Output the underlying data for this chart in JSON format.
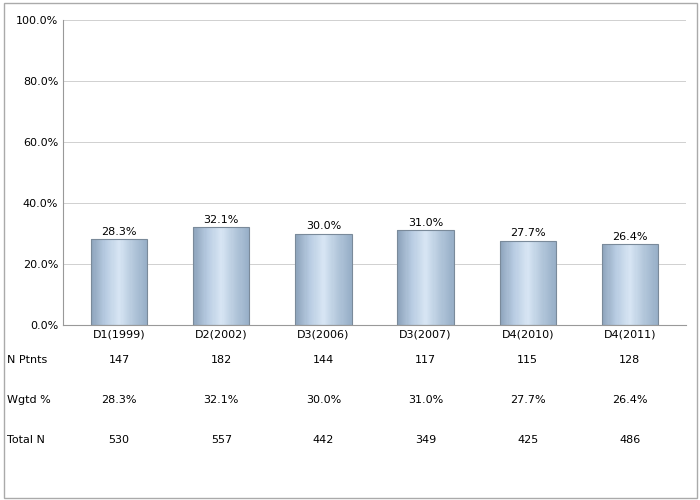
{
  "categories": [
    "D1(1999)",
    "D2(2002)",
    "D3(2006)",
    "D3(2007)",
    "D4(2010)",
    "D4(2011)"
  ],
  "values": [
    28.3,
    32.1,
    30.0,
    31.0,
    27.7,
    26.4
  ],
  "labels": [
    "28.3%",
    "32.1%",
    "30.0%",
    "31.0%",
    "27.7%",
    "26.4%"
  ],
  "n_ptnts": [
    147,
    182,
    144,
    117,
    115,
    128
  ],
  "wgtd_pct": [
    "28.3%",
    "32.1%",
    "30.0%",
    "31.0%",
    "27.7%",
    "26.4%"
  ],
  "total_n": [
    530,
    557,
    442,
    349,
    425,
    486
  ],
  "ylim": [
    0,
    100
  ],
  "yticks": [
    0,
    20,
    40,
    60,
    80,
    100
  ],
  "ytick_labels": [
    "0.0%",
    "20.0%",
    "40.0%",
    "60.0%",
    "80.0%",
    "100.0%"
  ],
  "background_color": "#ffffff",
  "grid_color": "#d0d0d0",
  "row_labels": [
    "N Ptnts",
    "Wgtd %",
    "Total N"
  ],
  "label_fontsize": 8,
  "tick_fontsize": 8,
  "table_fontsize": 8,
  "bar_width": 0.55
}
